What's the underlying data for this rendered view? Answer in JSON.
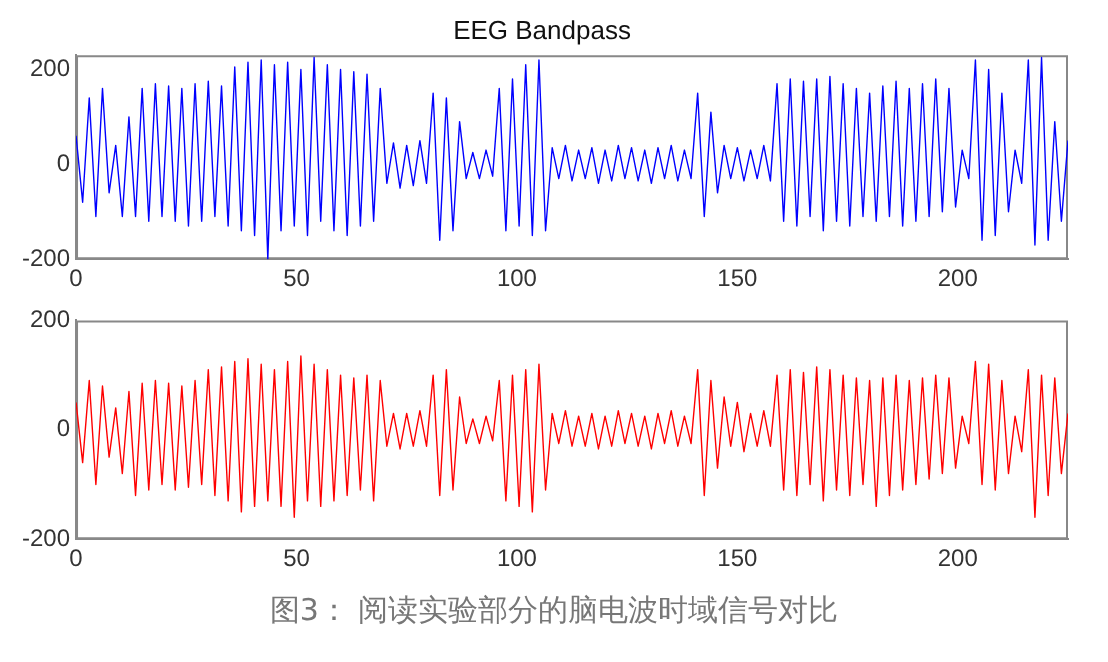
{
  "chart_data": [
    {
      "type": "line",
      "title": "EEG Bandpass",
      "xlim": [
        0,
        225
      ],
      "xticks": [
        0,
        50,
        100,
        150,
        200
      ],
      "ylim": [
        -200,
        230
      ],
      "yticks": [
        -200,
        0,
        200
      ],
      "grid": false,
      "legend": false,
      "x": [
        0,
        1.5,
        3,
        4.5,
        6,
        7.5,
        9,
        10.5,
        12,
        13.5,
        15,
        16.5,
        18,
        19.5,
        21,
        22.5,
        24,
        25.5,
        27,
        28.5,
        30,
        31.5,
        33,
        34.5,
        36,
        37.5,
        39,
        40.5,
        42,
        43.5,
        45,
        46.5,
        48,
        49.5,
        51,
        52.5,
        54,
        55.5,
        57,
        58.5,
        60,
        61.5,
        63,
        64.5,
        66,
        67.5,
        69,
        70.5,
        72,
        73.5,
        75,
        76.5,
        78,
        79.5,
        81,
        82.5,
        84,
        85.5,
        87,
        88.5,
        90,
        91.5,
        93,
        94.5,
        96,
        97.5,
        99,
        100.5,
        102,
        103.5,
        105,
        106.5,
        108,
        109.5,
        111,
        112.5,
        114,
        115.5,
        117,
        118.5,
        120,
        121.5,
        123,
        124.5,
        126,
        127.5,
        129,
        130.5,
        132,
        133.5,
        135,
        136.5,
        138,
        139.5,
        141,
        142.5,
        144,
        145.5,
        147,
        148.5,
        150,
        151.5,
        153,
        154.5,
        156,
        157.5,
        159,
        160.5,
        162,
        163.5,
        165,
        166.5,
        168,
        169.5,
        171,
        172.5,
        174,
        175.5,
        177,
        178.5,
        180,
        181.5,
        183,
        184.5,
        186,
        187.5,
        189,
        190.5,
        192,
        193.5,
        195,
        196.5,
        198,
        199.5,
        201,
        202.5,
        204,
        205.5,
        207,
        208.5,
        210,
        211.5,
        213,
        214.5,
        216,
        217.5,
        219,
        220.5,
        222,
        223.5,
        225
      ],
      "series": [
        {
          "color": "#0000ff",
          "values": [
            60,
            -80,
            140,
            -110,
            160,
            -60,
            40,
            -110,
            100,
            -110,
            160,
            -120,
            170,
            -110,
            165,
            -120,
            160,
            -130,
            170,
            -120,
            175,
            -110,
            165,
            -130,
            205,
            -140,
            215,
            -150,
            220,
            -200,
            210,
            -140,
            215,
            -130,
            200,
            -150,
            225,
            -120,
            210,
            -140,
            200,
            -150,
            195,
            -130,
            190,
            -120,
            160,
            -40,
            45,
            -50,
            40,
            -45,
            50,
            -40,
            150,
            -160,
            140,
            -140,
            90,
            -30,
            25,
            -30,
            30,
            -25,
            160,
            -140,
            180,
            -130,
            210,
            -150,
            220,
            -140,
            35,
            -30,
            40,
            -35,
            30,
            -30,
            35,
            -40,
            30,
            -35,
            40,
            -30,
            35,
            -35,
            30,
            -40,
            35,
            -30,
            40,
            -35,
            30,
            -30,
            150,
            -110,
            110,
            -60,
            40,
            -30,
            35,
            -35,
            30,
            -30,
            40,
            -35,
            170,
            -120,
            180,
            -130,
            175,
            -110,
            180,
            -140,
            185,
            -120,
            170,
            -130,
            160,
            -110,
            150,
            -120,
            165,
            -110,
            175,
            -130,
            160,
            -120,
            170,
            -110,
            180,
            -100,
            160,
            -90,
            30,
            -30,
            220,
            -160,
            200,
            -150,
            150,
            -100,
            30,
            -40,
            220,
            -170,
            225,
            -160,
            90,
            -120,
            50
          ]
        }
      ]
    },
    {
      "type": "line",
      "xlim": [
        0,
        225
      ],
      "xticks": [
        0,
        50,
        100,
        150,
        200
      ],
      "ylim": [
        -200,
        200
      ],
      "yticks": [
        -200,
        0,
        200
      ],
      "grid": false,
      "legend": false,
      "annotations": [
        "图3： 阅读实验部分的脑电波时域信号对比"
      ],
      "x": [
        0,
        1.5,
        3,
        4.5,
        6,
        7.5,
        9,
        10.5,
        12,
        13.5,
        15,
        16.5,
        18,
        19.5,
        21,
        22.5,
        24,
        25.5,
        27,
        28.5,
        30,
        31.5,
        33,
        34.5,
        36,
        37.5,
        39,
        40.5,
        42,
        43.5,
        45,
        46.5,
        48,
        49.5,
        51,
        52.5,
        54,
        55.5,
        57,
        58.5,
        60,
        61.5,
        63,
        64.5,
        66,
        67.5,
        69,
        70.5,
        72,
        73.5,
        75,
        76.5,
        78,
        79.5,
        81,
        82.5,
        84,
        85.5,
        87,
        88.5,
        90,
        91.5,
        93,
        94.5,
        96,
        97.5,
        99,
        100.5,
        102,
        103.5,
        105,
        106.5,
        108,
        109.5,
        111,
        112.5,
        114,
        115.5,
        117,
        118.5,
        120,
        121.5,
        123,
        124.5,
        126,
        127.5,
        129,
        130.5,
        132,
        133.5,
        135,
        136.5,
        138,
        139.5,
        141,
        142.5,
        144,
        145.5,
        147,
        148.5,
        150,
        151.5,
        153,
        154.5,
        156,
        157.5,
        159,
        160.5,
        162,
        163.5,
        165,
        166.5,
        168,
        169.5,
        171,
        172.5,
        174,
        175.5,
        177,
        178.5,
        180,
        181.5,
        183,
        184.5,
        186,
        187.5,
        189,
        190.5,
        192,
        193.5,
        195,
        196.5,
        198,
        199.5,
        201,
        202.5,
        204,
        205.5,
        207,
        208.5,
        210,
        211.5,
        213,
        214.5,
        216,
        217.5,
        219,
        220.5,
        222,
        223.5,
        225
      ],
      "series": [
        {
          "color": "#ff0000",
          "values": [
            50,
            -60,
            90,
            -100,
            80,
            -50,
            40,
            -80,
            70,
            -120,
            85,
            -110,
            90,
            -100,
            85,
            -110,
            80,
            -105,
            90,
            -100,
            110,
            -120,
            115,
            -130,
            125,
            -150,
            130,
            -140,
            120,
            -130,
            110,
            -140,
            125,
            -160,
            135,
            -130,
            120,
            -140,
            110,
            -130,
            100,
            -120,
            95,
            -110,
            100,
            -130,
            90,
            -30,
            30,
            -35,
            30,
            -30,
            35,
            -30,
            100,
            -120,
            110,
            -110,
            60,
            -25,
            20,
            -25,
            25,
            -20,
            90,
            -130,
            100,
            -140,
            110,
            -150,
            120,
            -110,
            30,
            -25,
            35,
            -30,
            25,
            -30,
            30,
            -35,
            25,
            -30,
            35,
            -25,
            30,
            -30,
            25,
            -35,
            30,
            -25,
            35,
            -30,
            25,
            -25,
            110,
            -120,
            90,
            -70,
            60,
            -30,
            50,
            -40,
            30,
            -30,
            35,
            -30,
            100,
            -110,
            110,
            -120,
            105,
            -100,
            115,
            -130,
            110,
            -110,
            100,
            -120,
            95,
            -100,
            90,
            -140,
            95,
            -120,
            100,
            -110,
            90,
            -100,
            95,
            -90,
            100,
            -80,
            95,
            -70,
            25,
            -25,
            125,
            -100,
            120,
            -110,
            90,
            -80,
            25,
            -40,
            110,
            -160,
            100,
            -120,
            95,
            -80,
            30
          ]
        }
      ]
    }
  ]
}
